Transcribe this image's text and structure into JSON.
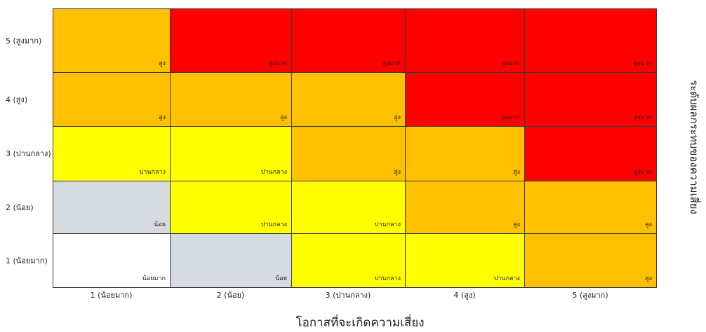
{
  "chart_data": {
    "type": "heatmap",
    "title": "",
    "xlabel": "โอกาสที่จะเกิดความเสี่ยง",
    "ylabel": "ระดับผลกระทบของความเสี่ยง",
    "x_categories": [
      "1 (น้อยมาก)",
      "2 (น้อย)",
      "3 (ปานกลาง)",
      "4 (สูง)",
      "5 (สูงมาก)"
    ],
    "y_categories": [
      "1 (น้อยมาก)",
      "2 (น้อย)",
      "3 (ปานกลาง)",
      "4 (สูง)",
      "5 (สูงมาก)"
    ],
    "cells": [
      [
        "น้อยมาก",
        "น้อย",
        "ปานกลาง",
        "ปานกลาง",
        "สูง"
      ],
      [
        "น้อย",
        "ปานกลาง",
        "ปานกลาง",
        "สูง",
        "สูง"
      ],
      [
        "ปานกลาง",
        "ปานกลาง",
        "สูง",
        "สูง",
        "สูงมาก"
      ],
      [
        "สูง",
        "สูง",
        "สูง",
        "สูงมาก",
        "สูงมาก"
      ],
      [
        "สูง",
        "สูงมาก",
        "สูงมาก",
        "สูงมาก",
        "สูงมาก"
      ]
    ],
    "level_colors": {
      "น้อยมาก": "#ffffff",
      "น้อย": "#d6dbe2",
      "ปานกลาง": "#ffff00",
      "สูง": "#ffc000",
      "สูงมาก": "#ff0000"
    },
    "grid": true,
    "legend": "none"
  }
}
